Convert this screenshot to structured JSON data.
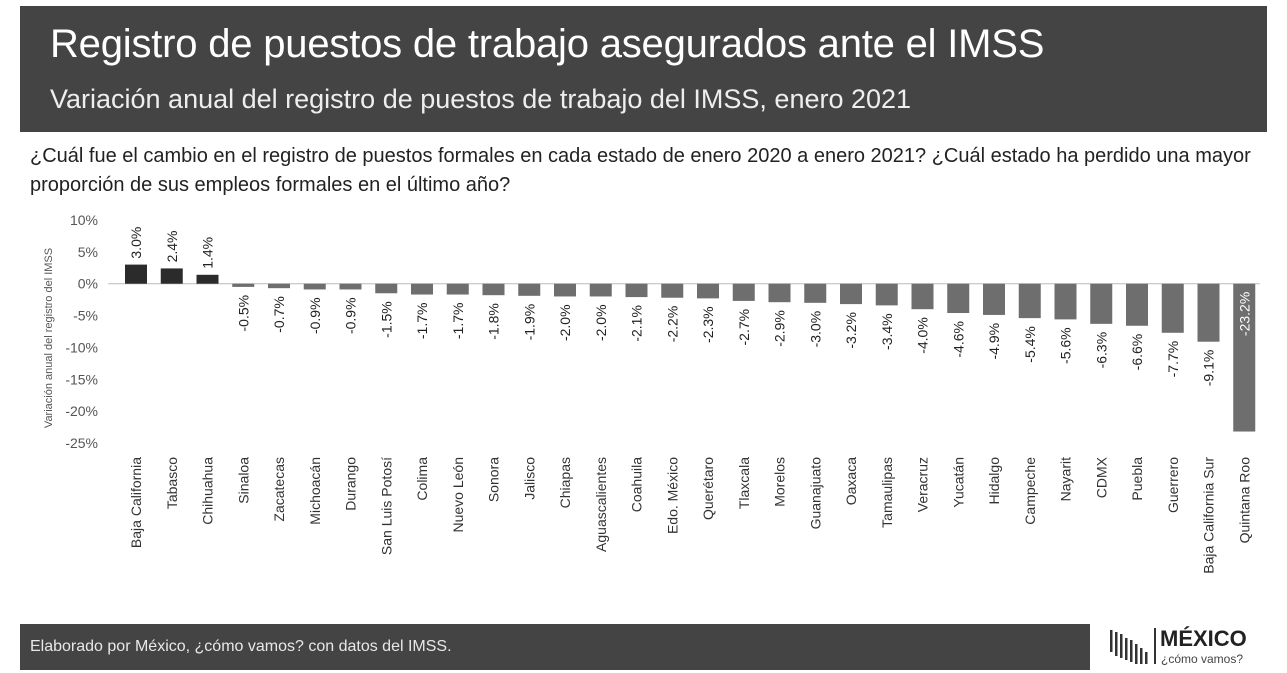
{
  "header": {
    "title": "Registro de puestos de trabajo asegurados ante el IMSS",
    "subtitle": "Variación anual del registro de puestos de trabajo del IMSS, enero 2021"
  },
  "question": "¿Cuál fue el cambio en el registro de puestos formales en cada estado de enero 2020 a enero 2021? ¿Cuál estado ha perdido una mayor proporción de sus empleos formales en el último año?",
  "footer": {
    "note": "Elaborado por México, ¿cómo vamos? con datos del IMSS."
  },
  "logo": {
    "name": "MÉXICO",
    "tagline": "¿cómo vamos?"
  },
  "colors": {
    "header_bg": "#444444",
    "positive_bar": "#2b2b2b",
    "negative_bar": "#6e6e6e"
  },
  "chart_data": {
    "type": "bar",
    "ylabel": "Variación anual del registro del IMSS",
    "ylim": [
      -25,
      10
    ],
    "yticks": [
      10,
      5,
      0,
      -5,
      -10,
      -15,
      -20,
      -25
    ],
    "ytick_labels": [
      "10%",
      "5%",
      "0%",
      "-5%",
      "-10%",
      "-15%",
      "-20%",
      "-25%"
    ],
    "grid": false,
    "categories": [
      "Baja California",
      "Tabasco",
      "Chihuahua",
      "Sinaloa",
      "Zacatecas",
      "Michoacán",
      "Durango",
      "San Luis Potosí",
      "Colima",
      "Nuevo León",
      "Sonora",
      "Jalisco",
      "Chiapas",
      "Aguascalientes",
      "Coahuila",
      "Edo. México",
      "Querétaro",
      "Tlaxcala",
      "Morelos",
      "Guanajuato",
      "Oaxaca",
      "Tamaulipas",
      "Veracruz",
      "Yucatán",
      "Hidalgo",
      "Campeche",
      "Nayarit",
      "CDMX",
      "Puebla",
      "Guerrero",
      "Baja California Sur",
      "Quintana Roo"
    ],
    "values": [
      3.0,
      2.4,
      1.4,
      -0.5,
      -0.7,
      -0.9,
      -0.9,
      -1.5,
      -1.7,
      -1.7,
      -1.8,
      -1.9,
      -2.0,
      -2.0,
      -2.1,
      -2.2,
      -2.3,
      -2.7,
      -2.9,
      -3.0,
      -3.2,
      -3.4,
      -4.0,
      -4.6,
      -4.9,
      -5.4,
      -5.6,
      -6.3,
      -6.6,
      -7.7,
      -9.1,
      -23.2
    ],
    "labels": [
      "3.0%",
      "2.4%",
      "1.4%",
      "-0.5%",
      "-0.7%",
      "-0.9%",
      "-0.9%",
      "-1.5%",
      "-1.7%",
      "-1.7%",
      "-1.8%",
      "-1.9%",
      "-2.0%",
      "-2.0%",
      "-2.1%",
      "-2.2%",
      "-2.3%",
      "-2.7%",
      "-2.9%",
      "-3.0%",
      "-3.2%",
      "-3.4%",
      "-4.0%",
      "-4.6%",
      "-4.9%",
      "-5.4%",
      "-5.6%",
      "-6.3%",
      "-6.6%",
      "-7.7%",
      "-9.1%",
      "-23.2%"
    ]
  }
}
